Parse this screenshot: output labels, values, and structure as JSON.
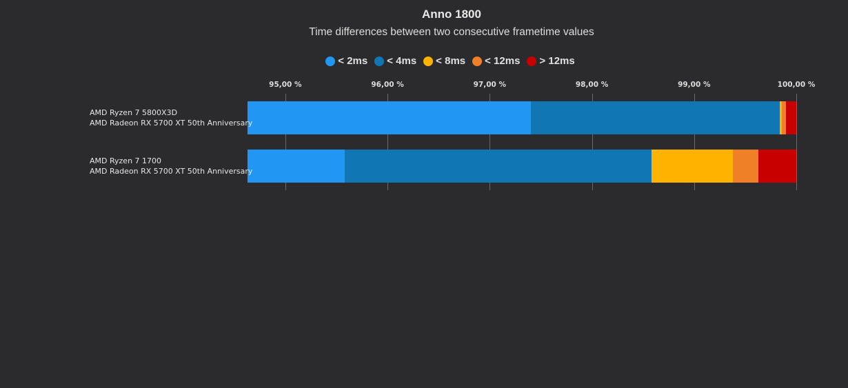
{
  "chart_data": {
    "type": "bar",
    "orientation": "horizontal",
    "stacked": true,
    "title": "Anno 1800",
    "subtitle": "Time differences between two consecutive frametime values",
    "xlabel": "",
    "ylabel": "",
    "xlim": [
      94.63,
      100
    ],
    "x_ticks": [
      "95,00 %",
      "96,00 %",
      "97,00 %",
      "98,00 %",
      "99,00 %",
      "100,00 %"
    ],
    "grid": true,
    "legend_position": "top",
    "categories": [
      [
        "AMD Ryzen 7 5800X3D",
        "AMD Radeon RX 5700 XT 50th Anniversary"
      ],
      [
        "AMD Ryzen 7 1700",
        "AMD Radeon RX 5700 XT 50th Anniversary"
      ]
    ],
    "series": [
      {
        "name": "< 2ms",
        "color": "#2196f3",
        "values": [
          97.4,
          95.58
        ]
      },
      {
        "name": "< 4ms",
        "color": "#1076b4",
        "values": [
          2.44,
          3.0
        ]
      },
      {
        "name": "< 8ms",
        "color": "#ffb300",
        "values": [
          0.02,
          0.8
        ]
      },
      {
        "name": "< 12ms",
        "color": "#f08028",
        "values": [
          0.04,
          0.25
        ]
      },
      {
        "name": "> 12ms",
        "color": "#c80000",
        "values": [
          0.1,
          0.37
        ]
      }
    ]
  }
}
